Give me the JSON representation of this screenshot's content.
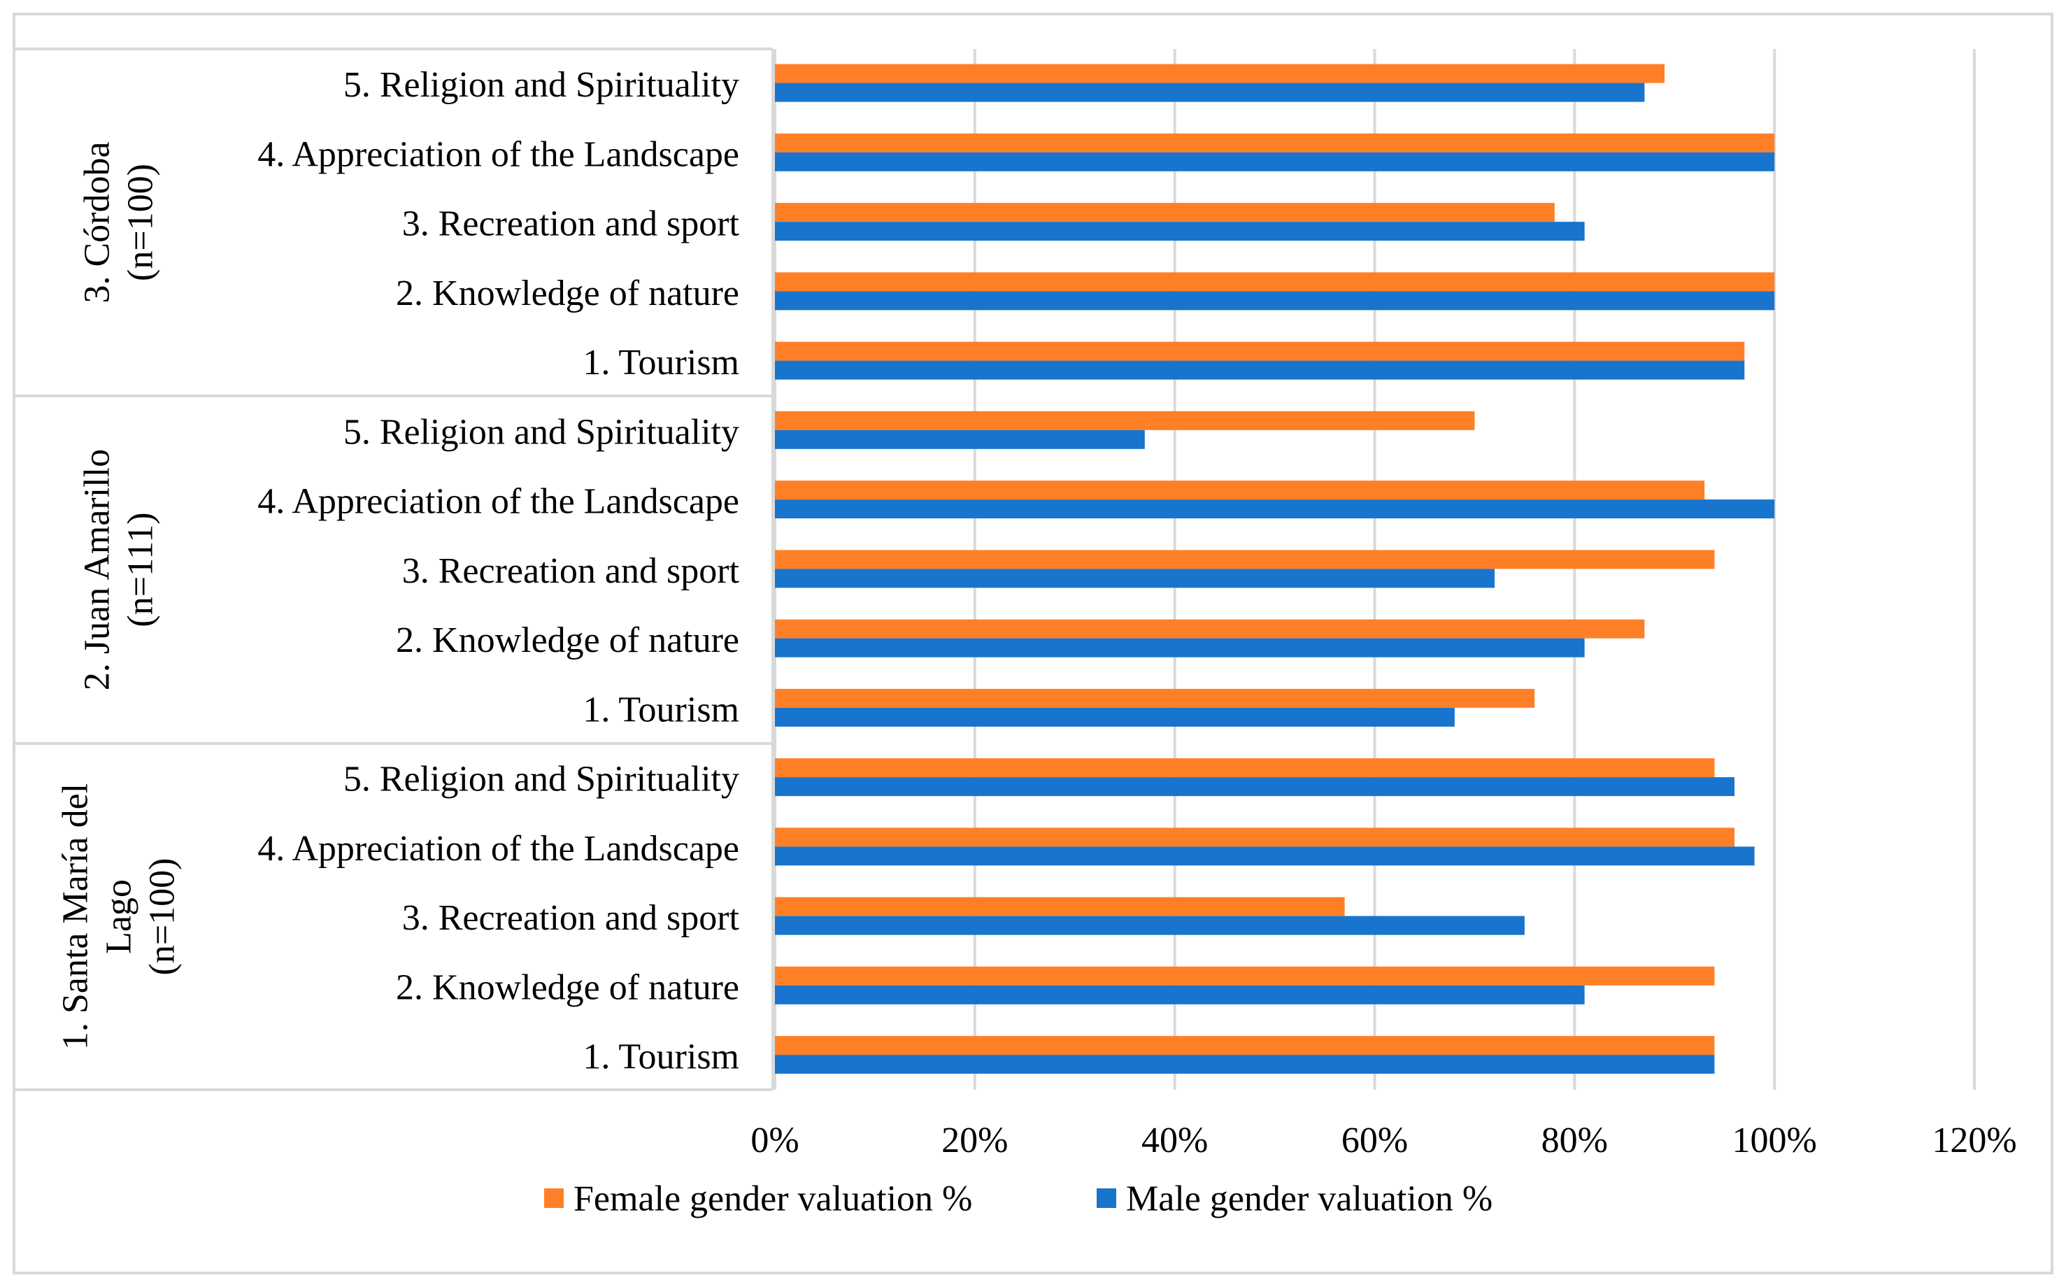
{
  "chart_data": {
    "type": "bar",
    "orientation": "horizontal",
    "xlim": [
      0,
      120
    ],
    "x_ticks": [
      "0%",
      "20%",
      "40%",
      "60%",
      "80%",
      "100%",
      "120%"
    ],
    "x_tick_values": [
      0,
      20,
      40,
      60,
      80,
      100,
      120
    ],
    "grid": true,
    "legend_placement": "bottom",
    "groups": [
      {
        "label_lines": [
          "3. Córdoba",
          "(n=100)"
        ],
        "categories": [
          "1. Tourism",
          "2. Knowledge of nature",
          "3. Recreation and sport",
          "4. Appreciation of the Landscape",
          "5. Religion and Spirituality"
        ],
        "female": [
          97,
          100,
          78,
          100,
          89
        ],
        "male": [
          97,
          100,
          81,
          100,
          87
        ]
      },
      {
        "label_lines": [
          "2. Juan Amarillo",
          "(n=111)"
        ],
        "categories": [
          "1. Tourism",
          "2. Knowledge of nature",
          "3. Recreation and sport",
          "4. Appreciation of the Landscape",
          "5. Religion and Spirituality"
        ],
        "female": [
          76,
          87,
          94,
          93,
          70
        ],
        "male": [
          68,
          81,
          72,
          100,
          37
        ]
      },
      {
        "label_lines": [
          "1. Santa María del",
          "Lago",
          "(n=100)"
        ],
        "categories": [
          "1. Tourism",
          "2. Knowledge of nature",
          "3. Recreation and sport",
          "4. Appreciation of the Landscape",
          "5. Religion and Spirituality"
        ],
        "female": [
          94,
          94,
          57,
          96,
          94
        ],
        "male": [
          94,
          81,
          75,
          98,
          96
        ]
      }
    ],
    "series": [
      {
        "name": "Female gender valuation %",
        "color": "#FF7F27"
      },
      {
        "name": "Male gender valuation %",
        "color": "#1874CD"
      }
    ]
  }
}
